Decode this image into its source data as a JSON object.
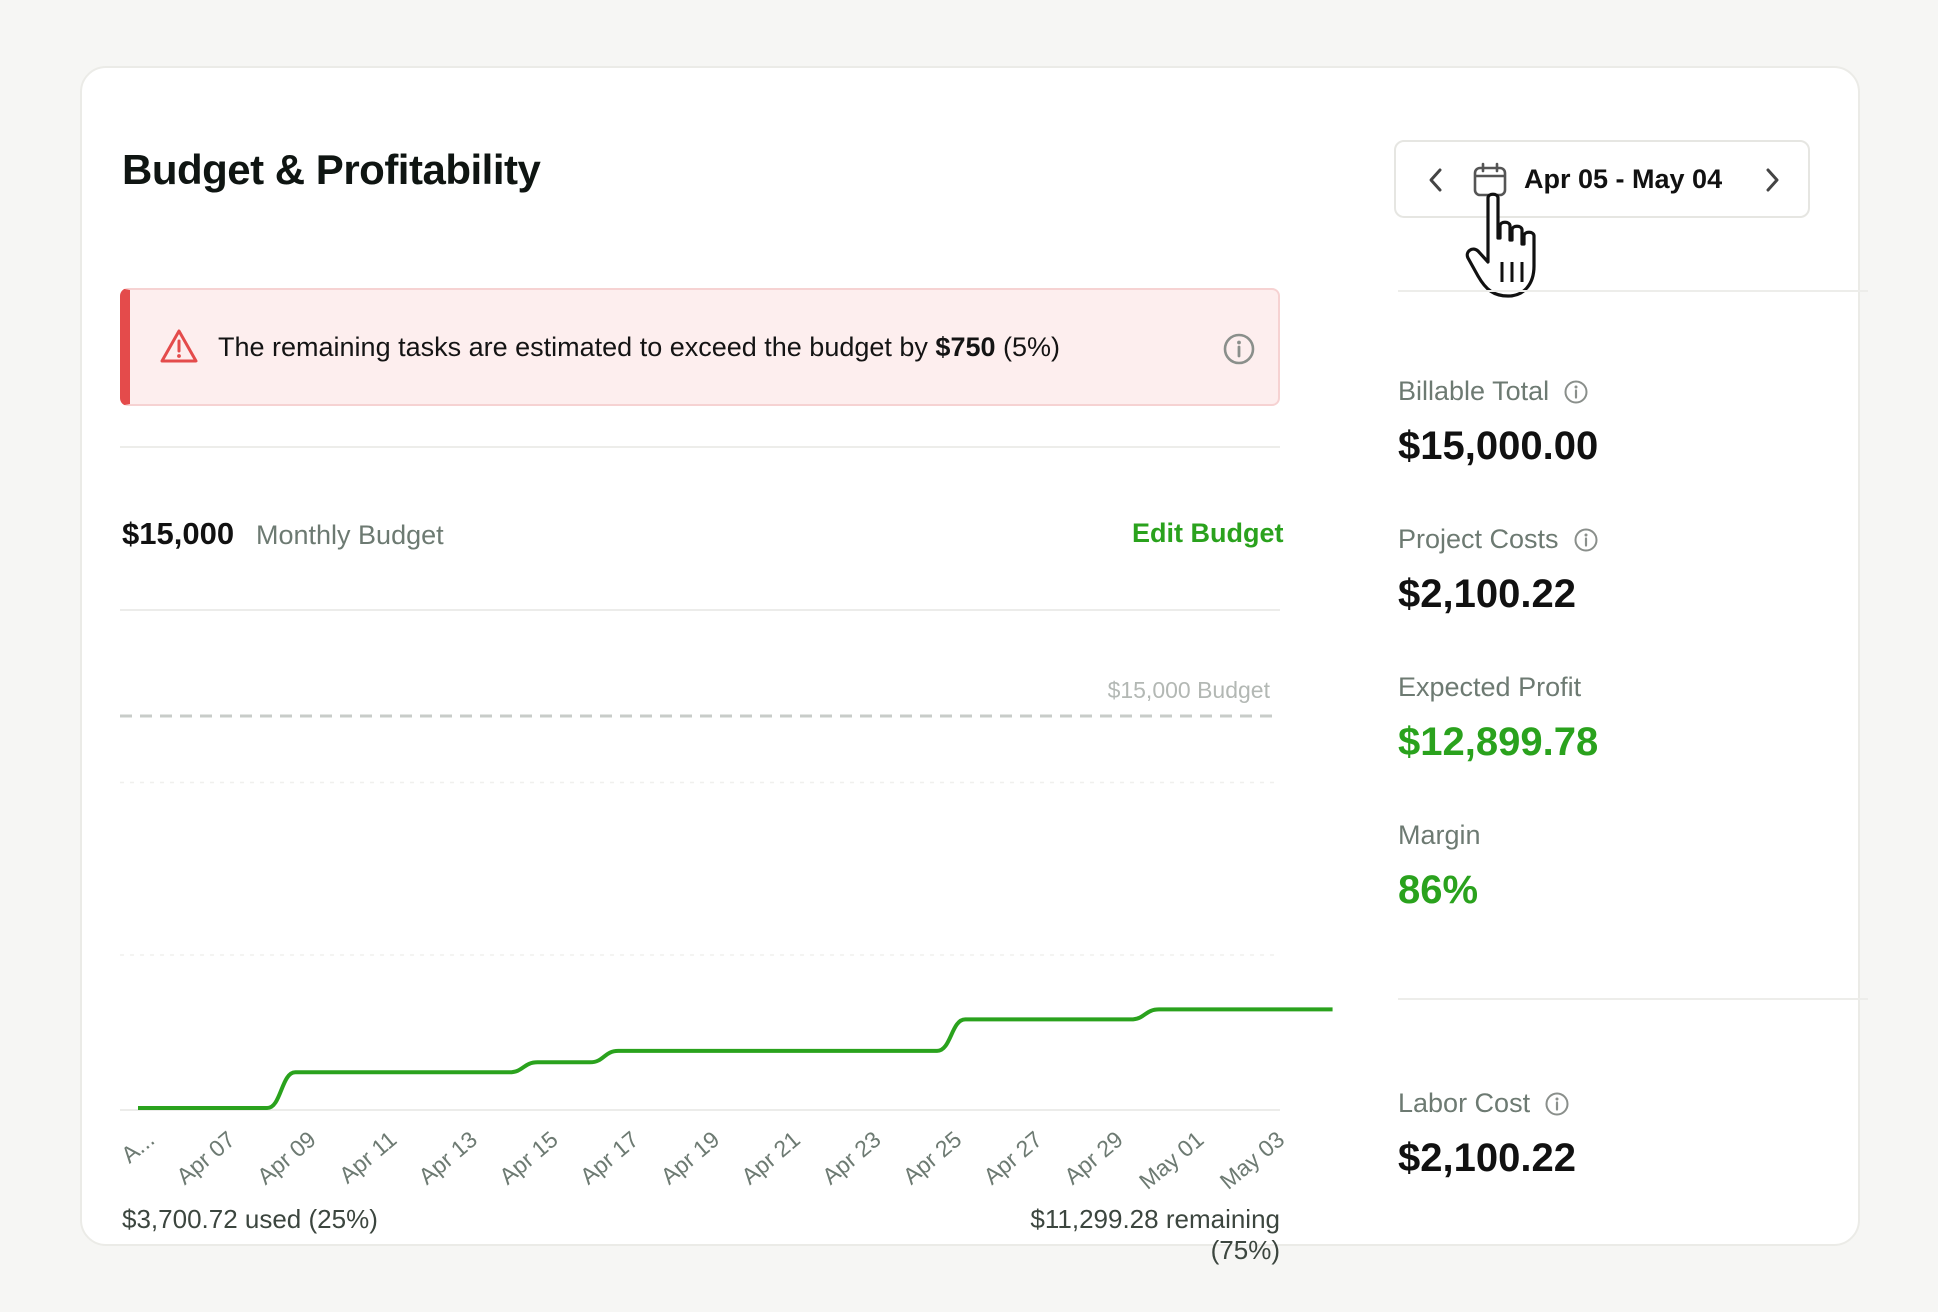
{
  "card": {
    "title": "Budget & Profitability"
  },
  "date_range": {
    "label": "Apr 05 - May 04",
    "prev_icon": "chevron-left-icon",
    "next_icon": "chevron-right-icon",
    "calendar_icon": "calendar-icon"
  },
  "alert": {
    "text_prefix": "The remaining tasks are estimated to exceed the budget by ",
    "amount": "$750",
    "text_suffix": " (5%)",
    "icon": "warning-triangle-icon",
    "info_icon": "info-icon",
    "accent_color": "#e44b4b"
  },
  "budget": {
    "amount": "$15,000",
    "label": "Monthly Budget",
    "edit_label": "Edit Budget"
  },
  "chart_data": {
    "type": "line",
    "x": [
      "A...",
      "Apr 07",
      "Apr 09",
      "Apr 11",
      "Apr 13",
      "Apr 15",
      "Apr 17",
      "Apr 19",
      "Apr 21",
      "Apr 23",
      "Apr 25",
      "Apr 27",
      "Apr 29",
      "May 01",
      "May 03"
    ],
    "budget_line": {
      "value": 15000,
      "label": "$15,000 Budget"
    },
    "series": [
      {
        "color": "#2aa21d",
        "points": [
          [
            0,
            0
          ],
          [
            1.6,
            0
          ],
          [
            1.95,
            1250
          ],
          [
            4.6,
            1250
          ],
          [
            4.95,
            1600
          ],
          [
            5.6,
            1600
          ],
          [
            5.95,
            2000
          ],
          [
            9.9,
            2000
          ],
          [
            10.25,
            3100
          ],
          [
            12.3,
            3100
          ],
          [
            12.65,
            3450
          ],
          [
            14.8,
            3450
          ]
        ]
      }
    ],
    "ylim": [
      0,
      17500
    ],
    "grid": true,
    "used": "$3,700.72 used (25%)",
    "remaining": "$11,299.28 remaining (75%)",
    "line_color": "#2aa21d"
  },
  "metrics": {
    "billable_total": {
      "label": "Billable Total",
      "value": "$15,000.00"
    },
    "project_costs": {
      "label": "Project Costs",
      "value": "$2,100.22"
    },
    "expected_profit": {
      "label": "Expected Profit",
      "value": "$12,899.78"
    },
    "margin": {
      "label": "Margin",
      "value": "86%"
    },
    "labor_cost": {
      "label": "Labor Cost",
      "value": "$2,100.22"
    },
    "positive_color": "#2aa21d"
  }
}
